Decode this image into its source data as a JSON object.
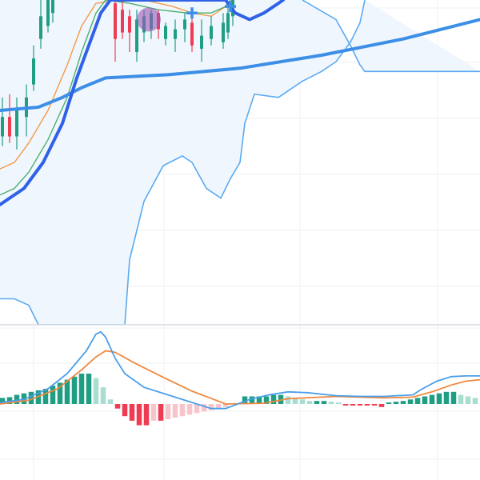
{
  "colors": {
    "background": "#ffffff",
    "grid": "#eef0f3",
    "pane_separator": "#d8dbe0",
    "candle_up": "#1f9e84",
    "candle_down": "#ee3d52",
    "band_line": "#5aaaf0",
    "band_fill": "#f0f6fd",
    "ma_thick_dark": "#2f62e8",
    "ma_thick_light": "#3c8ee6",
    "ma_orange": "#f29a4a",
    "ma_green": "#4caf6f",
    "macd_line": "#4a9ee8",
    "signal_line": "#f0883e",
    "hist_up_strong": "#1f9e84",
    "hist_up_weak": "#a8ddd0",
    "hist_down_strong": "#ee3d52",
    "hist_down_weak": "#f7c4c9",
    "marker_circle": "#9b59b6",
    "marker_cross": "#3c8ee6"
  },
  "icons": {
    "marker_circle": "purple-circle-marker",
    "marker_cross": "blue-cross-marker"
  },
  "chart_data": [
    {
      "type": "candlestick",
      "pane": "price",
      "grid": true,
      "ylim": [
        0,
        100
      ],
      "xlim": [
        0,
        100
      ],
      "candles": [
        {
          "x": 0.5,
          "o": 58,
          "c": 64,
          "h": 70,
          "l": 55
        },
        {
          "x": 2,
          "o": 64,
          "c": 58,
          "h": 71,
          "l": 56
        },
        {
          "x": 3.5,
          "o": 58,
          "c": 66,
          "h": 70,
          "l": 54
        },
        {
          "x": 5.5,
          "o": 64,
          "c": 70,
          "h": 74,
          "l": 58
        },
        {
          "x": 7,
          "o": 74,
          "c": 82,
          "h": 86,
          "l": 72
        },
        {
          "x": 8.5,
          "o": 88,
          "c": 95,
          "h": 100,
          "l": 85
        },
        {
          "x": 10,
          "o": 92,
          "c": 100,
          "h": 100,
          "l": 90
        },
        {
          "x": 11,
          "o": 96,
          "c": 100,
          "h": 100,
          "l": 93
        },
        {
          "x": 24,
          "o": 99,
          "c": 88,
          "h": 100,
          "l": 81
        },
        {
          "x": 25.5,
          "o": 97,
          "c": 90,
          "h": 100,
          "l": 88
        },
        {
          "x": 27,
          "o": 95,
          "c": 90,
          "h": 97,
          "l": 84
        },
        {
          "x": 28.5,
          "o": 84,
          "c": 94,
          "h": 97,
          "l": 81
        },
        {
          "x": 30,
          "o": 90,
          "c": 95,
          "h": 97,
          "l": 87
        },
        {
          "x": 31.5,
          "o": 91,
          "c": 96,
          "h": 97,
          "l": 88
        },
        {
          "x": 33,
          "o": 96,
          "c": 91,
          "h": 97,
          "l": 88
        },
        {
          "x": 34.5,
          "o": 88,
          "c": 92,
          "h": 93,
          "l": 86
        },
        {
          "x": 36.5,
          "o": 88,
          "c": 91,
          "h": 94,
          "l": 84
        },
        {
          "x": 38.5,
          "o": 91,
          "c": 94,
          "h": 96,
          "l": 87
        },
        {
          "x": 40,
          "o": 93,
          "c": 86,
          "h": 95,
          "l": 84
        },
        {
          "x": 42,
          "o": 85,
          "c": 89,
          "h": 94,
          "l": 81
        },
        {
          "x": 44,
          "o": 88,
          "c": 92,
          "h": 95,
          "l": 86
        },
        {
          "x": 46.5,
          "o": 87,
          "c": 93,
          "h": 96,
          "l": 85
        },
        {
          "x": 47.5,
          "o": 90,
          "c": 96,
          "h": 98,
          "l": 88
        },
        {
          "x": 48.5,
          "o": 95,
          "c": 100,
          "h": 100,
          "l": 92
        }
      ],
      "bollinger_upper": [
        [
          63,
          100
        ],
        [
          70,
          94
        ],
        [
          73,
          86
        ],
        [
          75,
          80
        ],
        [
          76,
          78
        ],
        [
          100,
          78
        ]
      ],
      "bollinger_lower": [
        [
          0,
          8
        ],
        [
          3,
          8
        ],
        [
          6,
          6
        ],
        [
          8,
          0
        ],
        [
          26,
          0
        ],
        [
          27,
          20
        ],
        [
          30,
          38
        ],
        [
          34,
          49
        ],
        [
          38,
          52
        ],
        [
          40,
          50
        ],
        [
          43,
          42
        ],
        [
          46,
          39
        ],
        [
          48,
          45
        ],
        [
          50,
          50
        ],
        [
          51,
          62
        ],
        [
          53,
          71
        ],
        [
          58,
          70
        ],
        [
          60,
          72
        ],
        [
          63,
          75
        ],
        [
          67,
          78
        ],
        [
          70,
          81
        ],
        [
          73,
          87
        ],
        [
          75,
          93
        ],
        [
          76,
          100
        ]
      ],
      "ma_thick_dark": [
        [
          0,
          37
        ],
        [
          5,
          42
        ],
        [
          9,
          50
        ],
        [
          13,
          62
        ],
        [
          16,
          76
        ],
        [
          19,
          88
        ],
        [
          21,
          96
        ],
        [
          23,
          100
        ],
        [
          47,
          100
        ],
        [
          49,
          96
        ],
        [
          52,
          94
        ],
        [
          55,
          96
        ],
        [
          58,
          99
        ],
        [
          59,
          100
        ]
      ],
      "ma_thick_light": [
        [
          0,
          66
        ],
        [
          8,
          67
        ],
        [
          13,
          70
        ],
        [
          17,
          73
        ],
        [
          22,
          76
        ],
        [
          35,
          77
        ],
        [
          50,
          79
        ],
        [
          67,
          83
        ],
        [
          84,
          88
        ],
        [
          100,
          94
        ]
      ],
      "ma_orange": [
        [
          0,
          48
        ],
        [
          3,
          50
        ],
        [
          6,
          56
        ],
        [
          10,
          66
        ],
        [
          14,
          80
        ],
        [
          17,
          92
        ],
        [
          20,
          99
        ],
        [
          25,
          100
        ],
        [
          30,
          100
        ],
        [
          36,
          98
        ],
        [
          40,
          96
        ],
        [
          44,
          95
        ],
        [
          47,
          98
        ],
        [
          48,
          100
        ]
      ],
      "ma_green": [
        [
          0,
          40
        ],
        [
          3,
          42
        ],
        [
          6,
          47
        ],
        [
          10,
          57
        ],
        [
          14,
          70
        ],
        [
          17,
          84
        ],
        [
          20,
          96
        ],
        [
          22,
          100
        ],
        [
          27,
          99
        ],
        [
          33,
          97
        ],
        [
          39,
          96
        ],
        [
          44,
          96
        ],
        [
          47,
          98
        ],
        [
          48,
          100
        ]
      ],
      "markers": [
        {
          "kind": "circle",
          "x": 31,
          "y": 94
        },
        {
          "kind": "cross",
          "x": 40,
          "y": 96
        },
        {
          "kind": "cross",
          "x": 48,
          "y": 98
        }
      ]
    },
    {
      "type": "macd",
      "pane": "indicator",
      "grid": true,
      "ylim": [
        -1,
        1
      ],
      "xlim": [
        0,
        100
      ],
      "macd_line": [
        [
          0,
          0.02
        ],
        [
          5,
          0.06
        ],
        [
          10,
          0.2
        ],
        [
          14,
          0.4
        ],
        [
          18,
          0.7
        ],
        [
          20,
          0.92
        ],
        [
          21,
          0.95
        ],
        [
          22,
          0.88
        ],
        [
          24,
          0.6
        ],
        [
          26,
          0.4
        ],
        [
          30,
          0.22
        ],
        [
          40,
          0.02
        ],
        [
          44,
          -0.06
        ],
        [
          47,
          -0.06
        ],
        [
          52,
          0.06
        ],
        [
          56,
          0.12
        ],
        [
          60,
          0.16
        ],
        [
          64,
          0.15
        ],
        [
          70,
          0.11
        ],
        [
          75,
          0.1
        ],
        [
          80,
          0.1
        ],
        [
          86,
          0.12
        ],
        [
          88,
          0.2
        ],
        [
          91,
          0.3
        ],
        [
          94,
          0.36
        ],
        [
          97,
          0.37
        ],
        [
          100,
          0.37
        ]
      ],
      "signal_line": [
        [
          0,
          0.0
        ],
        [
          6,
          0.05
        ],
        [
          12,
          0.2
        ],
        [
          17,
          0.45
        ],
        [
          20,
          0.62
        ],
        [
          22,
          0.7
        ],
        [
          24,
          0.68
        ],
        [
          28,
          0.54
        ],
        [
          35,
          0.32
        ],
        [
          40,
          0.17
        ],
        [
          45,
          0.05
        ],
        [
          47,
          0.0
        ],
        [
          55,
          0.01
        ],
        [
          60,
          0.07
        ],
        [
          70,
          0.1
        ],
        [
          80,
          0.08
        ],
        [
          86,
          0.09
        ],
        [
          90,
          0.16
        ],
        [
          94,
          0.25
        ],
        [
          97,
          0.3
        ],
        [
          100,
          0.32
        ]
      ],
      "histogram": [
        {
          "x": 0.5,
          "v": 0.08
        },
        {
          "x": 2,
          "v": 0.09
        },
        {
          "x": 3.5,
          "v": 0.12
        },
        {
          "x": 5,
          "v": 0.14
        },
        {
          "x": 6.5,
          "v": 0.16
        },
        {
          "x": 8,
          "v": 0.18
        },
        {
          "x": 9.5,
          "v": 0.2
        },
        {
          "x": 11,
          "v": 0.24
        },
        {
          "x": 12.5,
          "v": 0.28
        },
        {
          "x": 14,
          "v": 0.32
        },
        {
          "x": 15.5,
          "v": 0.36
        },
        {
          "x": 17,
          "v": 0.4
        },
        {
          "x": 18.5,
          "v": 0.4
        },
        {
          "x": 20,
          "v": 0.34
        },
        {
          "x": 21.5,
          "v": 0.22
        },
        {
          "x": 23,
          "v": 0.06
        },
        {
          "x": 24.5,
          "v": -0.06
        },
        {
          "x": 26,
          "v": -0.16
        },
        {
          "x": 27.5,
          "v": -0.22
        },
        {
          "x": 29,
          "v": -0.28
        },
        {
          "x": 30.5,
          "v": -0.28
        },
        {
          "x": 32,
          "v": -0.22
        },
        {
          "x": 33.5,
          "v": -0.22
        },
        {
          "x": 35,
          "v": -0.2
        },
        {
          "x": 36.5,
          "v": -0.18
        },
        {
          "x": 38,
          "v": -0.16
        },
        {
          "x": 39.5,
          "v": -0.14
        },
        {
          "x": 41,
          "v": -0.12
        },
        {
          "x": 42.5,
          "v": -0.1
        },
        {
          "x": 44,
          "v": -0.08
        },
        {
          "x": 45.5,
          "v": -0.06
        },
        {
          "x": 47,
          "v": -0.04
        },
        {
          "x": 51,
          "v": 0.1
        },
        {
          "x": 52.5,
          "v": 0.1
        },
        {
          "x": 54,
          "v": 0.1
        },
        {
          "x": 55.5,
          "v": 0.1
        },
        {
          "x": 57,
          "v": 0.12
        },
        {
          "x": 58.5,
          "v": 0.12
        },
        {
          "x": 60,
          "v": 0.1
        },
        {
          "x": 61.5,
          "v": 0.08
        },
        {
          "x": 63,
          "v": 0.06
        },
        {
          "x": 64.5,
          "v": 0.04
        },
        {
          "x": 66,
          "v": 0.04
        },
        {
          "x": 67.5,
          "v": 0.04
        },
        {
          "x": 69,
          "v": 0.03
        },
        {
          "x": 70.5,
          "v": 0.02
        },
        {
          "x": 72,
          "v": -0.02
        },
        {
          "x": 73.5,
          "v": -0.02
        },
        {
          "x": 75,
          "v": -0.02
        },
        {
          "x": 76.5,
          "v": -0.02
        },
        {
          "x": 78,
          "v": -0.02
        },
        {
          "x": 79.5,
          "v": -0.04
        },
        {
          "x": 81,
          "v": 0.02
        },
        {
          "x": 82.5,
          "v": 0.03
        },
        {
          "x": 84,
          "v": 0.04
        },
        {
          "x": 85.5,
          "v": 0.06
        },
        {
          "x": 87,
          "v": 0.08
        },
        {
          "x": 88.5,
          "v": 0.1
        },
        {
          "x": 90,
          "v": 0.12
        },
        {
          "x": 91.5,
          "v": 0.14
        },
        {
          "x": 93,
          "v": 0.16
        },
        {
          "x": 94.5,
          "v": 0.16
        },
        {
          "x": 96,
          "v": 0.12
        },
        {
          "x": 97.5,
          "v": 0.1
        },
        {
          "x": 99,
          "v": 0.08
        }
      ]
    }
  ]
}
